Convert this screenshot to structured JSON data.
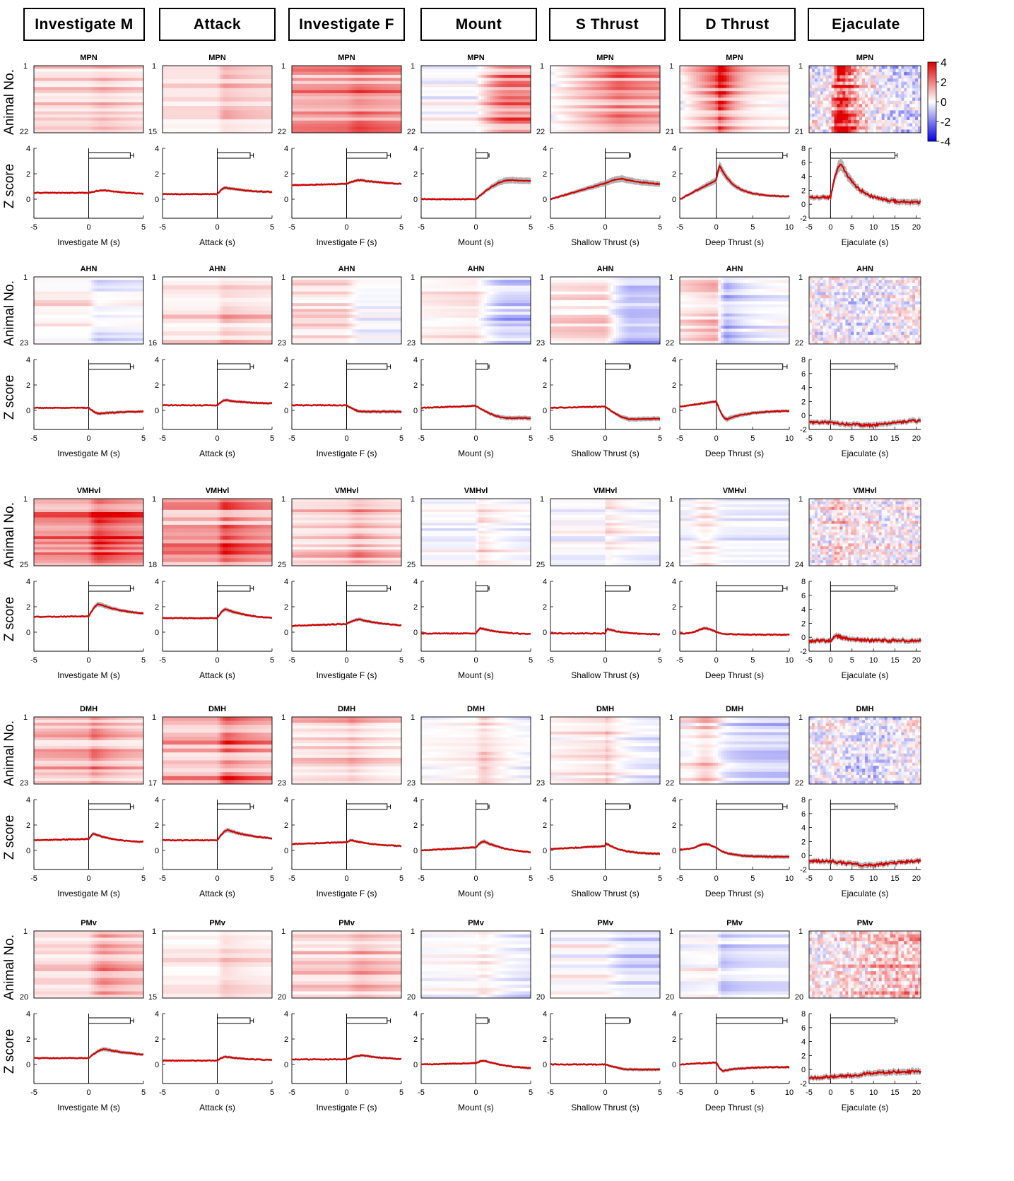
{
  "behaviors": [
    {
      "header": "Investigate M",
      "xlabel": "Investigate M (s)",
      "xlim": [
        -5,
        5
      ],
      "xticks": [
        -5,
        0,
        5
      ],
      "bar": {
        "onset": 0.1,
        "mean": 3.8,
        "err": 0.3
      }
    },
    {
      "header": "Attack",
      "xlabel": "Attack (s)",
      "xlim": [
        -5,
        5
      ],
      "xticks": [
        -5,
        0,
        5
      ],
      "bar": {
        "onset": 0.3,
        "mean": 3.0,
        "err": 0.3
      }
    },
    {
      "header": "Investigate F",
      "xlabel": "Investigate F (s)",
      "xlim": [
        -5,
        5
      ],
      "xticks": [
        -5,
        0,
        5
      ],
      "bar": {
        "onset": 0.3,
        "mean": 3.7,
        "err": 0.3
      }
    },
    {
      "header": "Mount",
      "xlabel": "Mount (s)",
      "xlim": [
        -5,
        5
      ],
      "xticks": [
        -5,
        0,
        5
      ],
      "bar": {
        "onset": 0.3,
        "mean": 1.1,
        "err": 0.1
      }
    },
    {
      "header": "S Thrust",
      "xlabel": "Shallow Thrust (s)",
      "xlim": [
        -5,
        5
      ],
      "xticks": [
        -5,
        0,
        5
      ],
      "bar": {
        "onset": 0.3,
        "mean": 2.2,
        "err": 0.1
      }
    },
    {
      "header": "D Thrust",
      "xlabel": "Deep Thrust (s)",
      "xlim": [
        -5,
        10
      ],
      "xticks": [
        -5,
        0,
        5,
        10
      ],
      "bar": {
        "onset": 0.5,
        "mean": 9.1,
        "err": 0.6
      }
    },
    {
      "header": "Ejaculate",
      "xlabel": "Ejaculate (s)",
      "xlim": [
        -5,
        21
      ],
      "xticks": [
        -5,
        0,
        5,
        10,
        15,
        20
      ],
      "bar": {
        "onset": 0.8,
        "mean": 15,
        "err": 0.5
      }
    }
  ],
  "colorbar": {
    "ticks": [
      "4",
      "2",
      "0",
      "-2",
      "-4"
    ],
    "colors": {
      "max": "#e00000",
      "mid": "#ffffff",
      "min": "#0000e6"
    }
  },
  "line_color": "#d40000",
  "sem_color": "#9a9a9a",
  "ylabel_heatmap": "Animal No.",
  "ylabel_trace": "Z score",
  "heatmap_top_tick": "1",
  "chart_data": {
    "type": "heatmap",
    "regions": [
      {
        "name": "MPN",
        "animal_counts": [
          22,
          15,
          22,
          22,
          22,
          21,
          21
        ],
        "ejac_ylim": [
          -2,
          8
        ],
        "ejac_yticks": [
          -2,
          0,
          2,
          4,
          6,
          8
        ],
        "traces": [
          {
            "pre": 0.5,
            "peak": 0.7,
            "tpeak": 1.5,
            "post": 0.3,
            "trend": 0
          },
          {
            "pre": 0.4,
            "peak": 0.9,
            "tpeak": 0.8,
            "post": 0.5,
            "trend": 0
          },
          {
            "pre": 1.1,
            "peak": 1.5,
            "tpeak": 1.3,
            "post": 1.1,
            "trend": 0.02
          },
          {
            "pre": 0.0,
            "peak": 1.5,
            "tpeak": 3.2,
            "post": 1.3,
            "trend": 0
          },
          {
            "pre": 0.0,
            "peak": 1.6,
            "tpeak": 1.5,
            "post": 1.0,
            "trend": 0.25
          },
          {
            "pre": 0.0,
            "peak": 2.6,
            "tpeak": 0.5,
            "post": 0.2,
            "trend": 0.3
          },
          {
            "pre": 1.0,
            "peak": 5.8,
            "tpeak": 2.5,
            "post": 0.2,
            "trend": 0
          }
        ]
      },
      {
        "name": "AHN",
        "animal_counts": [
          23,
          16,
          23,
          23,
          23,
          22,
          22
        ],
        "ejac_ylim": [
          -2,
          8
        ],
        "ejac_yticks": [
          -2,
          0,
          2,
          4,
          6,
          8
        ],
        "traces": [
          {
            "pre": 0.2,
            "peak": -0.25,
            "tpeak": 1.0,
            "post": -0.05,
            "trend": 0
          },
          {
            "pre": 0.4,
            "peak": 0.8,
            "tpeak": 0.8,
            "post": 0.5,
            "trend": 0
          },
          {
            "pre": 0.4,
            "peak": -0.1,
            "tpeak": 1.5,
            "post": -0.1,
            "trend": 0
          },
          {
            "pre": 0.2,
            "peak": -0.6,
            "tpeak": 3.0,
            "post": -0.6,
            "trend": 0.03
          },
          {
            "pre": 0.2,
            "peak": -0.7,
            "tpeak": 2.5,
            "post": -0.6,
            "trend": 0.02
          },
          {
            "pre": 0.3,
            "peak": -0.7,
            "tpeak": 1.5,
            "post": 0.0,
            "trend": 0.08
          },
          {
            "pre": -1.0,
            "peak": -1.4,
            "tpeak": 10,
            "post": -0.3,
            "trend": 0
          }
        ]
      },
      {
        "name": "VMHvl",
        "animal_counts": [
          25,
          18,
          25,
          25,
          25,
          24,
          24
        ],
        "ejac_ylim": [
          -2,
          8
        ],
        "ejac_yticks": [
          -2,
          0,
          2,
          4,
          6,
          8
        ],
        "traces": [
          {
            "pre": 1.2,
            "peak": 2.2,
            "tpeak": 1.0,
            "post": 1.3,
            "trend": 0.01
          },
          {
            "pre": 1.1,
            "peak": 1.8,
            "tpeak": 0.8,
            "post": 1.0,
            "trend": 0
          },
          {
            "pre": 0.5,
            "peak": 1.0,
            "tpeak": 1.2,
            "post": 0.4,
            "trend": 0.03
          },
          {
            "pre": -0.1,
            "peak": 0.3,
            "tpeak": 0.5,
            "post": -0.2,
            "trend": 0
          },
          {
            "pre": -0.1,
            "peak": 0.25,
            "tpeak": 0.2,
            "post": -0.2,
            "trend": 0
          },
          {
            "pre": -0.1,
            "peak": 0.3,
            "tpeak": -1.5,
            "post": -0.2,
            "trend": 0
          },
          {
            "pre": -0.5,
            "peak": 0.2,
            "tpeak": 1.5,
            "post": -0.5,
            "trend": 0
          }
        ]
      },
      {
        "name": "DMH",
        "animal_counts": [
          23,
          17,
          23,
          23,
          23,
          22,
          22
        ],
        "ejac_ylim": [
          -2,
          8
        ],
        "ejac_yticks": [
          -2,
          0,
          2,
          4,
          6,
          8
        ],
        "traces": [
          {
            "pre": 0.8,
            "peak": 1.3,
            "tpeak": 0.5,
            "post": 0.6,
            "trend": 0.02
          },
          {
            "pre": 0.8,
            "peak": 1.6,
            "tpeak": 1.0,
            "post": 0.8,
            "trend": 0
          },
          {
            "pre": 0.5,
            "peak": 0.8,
            "tpeak": 0.5,
            "post": 0.3,
            "trend": 0.03
          },
          {
            "pre": 0.0,
            "peak": 0.7,
            "tpeak": 0.8,
            "post": -0.3,
            "trend": 0.05
          },
          {
            "pre": 0.1,
            "peak": 0.6,
            "tpeak": 0.0,
            "post": -0.3,
            "trend": 0.05
          },
          {
            "pre": 0.1,
            "peak": 0.5,
            "tpeak": -1.5,
            "post": -0.5,
            "trend": 0.03
          },
          {
            "pre": -0.8,
            "peak": -1.4,
            "tpeak": 10,
            "post": -0.4,
            "trend": 0
          }
        ]
      },
      {
        "name": "PMv",
        "animal_counts": [
          20,
          15,
          20,
          20,
          20,
          20,
          20
        ],
        "ejac_ylim": [
          -2,
          8
        ],
        "ejac_yticks": [
          -2,
          0,
          2,
          4,
          6,
          8
        ],
        "traces": [
          {
            "pre": 0.5,
            "peak": 1.2,
            "tpeak": 1.5,
            "post": 0.6,
            "trend": 0
          },
          {
            "pre": 0.3,
            "peak": 0.6,
            "tpeak": 0.8,
            "post": 0.3,
            "trend": 0
          },
          {
            "pre": 0.4,
            "peak": 0.7,
            "tpeak": 1.5,
            "post": 0.3,
            "trend": 0
          },
          {
            "pre": 0.0,
            "peak": 0.3,
            "tpeak": 0.8,
            "post": -0.4,
            "trend": 0.02
          },
          {
            "pre": 0.0,
            "peak": -0.4,
            "tpeak": 2.5,
            "post": -0.4,
            "trend": 0
          },
          {
            "pre": 0.0,
            "peak": -0.5,
            "tpeak": 1.0,
            "post": -0.2,
            "trend": 0.03
          },
          {
            "pre": -1.2,
            "peak": -0.9,
            "tpeak": 5,
            "post": -0.2,
            "trend": 0.03
          }
        ]
      }
    ],
    "trace_ylim": [
      -1.5,
      4
    ],
    "trace_yticks": [
      0,
      2,
      4
    ]
  }
}
